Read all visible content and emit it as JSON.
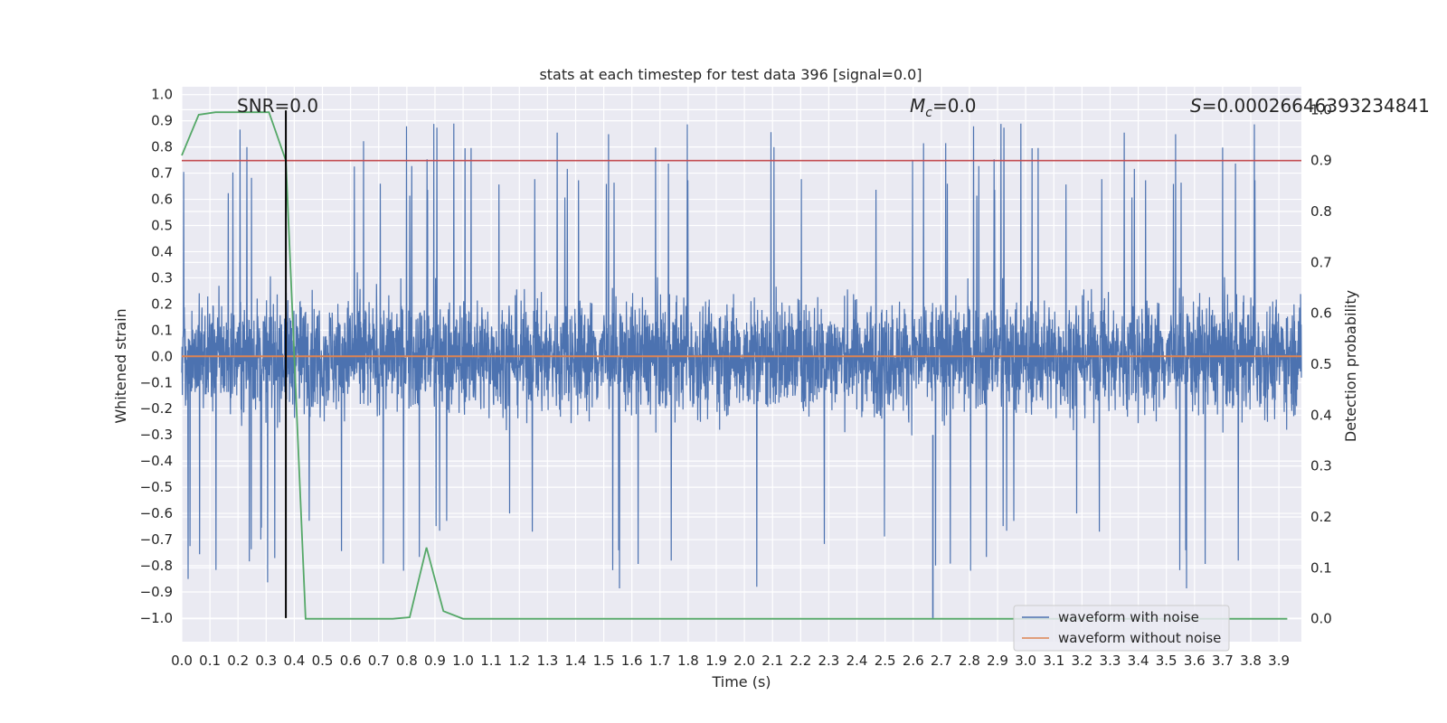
{
  "chart_data": {
    "type": "line",
    "title": "stats at each timestep for test data 396 [signal=0.0]",
    "xlabel": "Time (s)",
    "ylabel": "Whitened strain",
    "y2label": "Detection probability",
    "xlim": [
      0.0,
      3.98
    ],
    "ylim": [
      -1.09,
      1.03
    ],
    "y2lim": [
      -0.045,
      1.045
    ],
    "x_ticks": [
      "0.0",
      "0.1",
      "0.2",
      "0.3",
      "0.4",
      "0.5",
      "0.6",
      "0.7",
      "0.8",
      "0.9",
      "1.0",
      "1.1",
      "1.2",
      "1.3",
      "1.4",
      "1.5",
      "1.6",
      "1.7",
      "1.8",
      "1.9",
      "2.0",
      "2.1",
      "2.2",
      "2.3",
      "2.4",
      "2.5",
      "2.6",
      "2.7",
      "2.8",
      "2.9",
      "3.0",
      "3.1",
      "3.2",
      "3.3",
      "3.4",
      "3.5",
      "3.6",
      "3.7",
      "3.8",
      "3.9"
    ],
    "y_ticks": [
      "1.0",
      "0.9",
      "0.8",
      "0.7",
      "0.6",
      "0.5",
      "0.4",
      "0.3",
      "0.2",
      "0.1",
      "0.0",
      "−0.1",
      "−0.2",
      "−0.3",
      "−0.4",
      "−0.5",
      "−0.6",
      "−0.7",
      "−0.8",
      "−0.9",
      "−1.0"
    ],
    "y2_ticks": [
      "1.0",
      "0.9",
      "0.8",
      "0.7",
      "0.6",
      "0.5",
      "0.4",
      "0.3",
      "0.2",
      "0.1",
      "0.0"
    ],
    "annotations": {
      "snr": "SNR=0.0",
      "mc_base": "M",
      "mc_sub": "c",
      "mc_value": "=0.0",
      "s_symbol": "S",
      "s_value": "=0.00026646393234841",
      "mc_glyph_name": "M_c"
    },
    "series": [
      {
        "name": "waveform with noise",
        "color": "#4c72b0",
        "axis": "left",
        "description": "noisy whitened strain",
        "n_points": 4096,
        "range": [
          -1.0,
          0.94
        ]
      },
      {
        "name": "waveform without noise",
        "color": "#dd8452",
        "axis": "left",
        "values_x": [
          0.0,
          3.98
        ],
        "values_y": [
          0.0,
          0.0
        ]
      },
      {
        "name": "detection probability",
        "color": "#55a868",
        "axis": "right",
        "x": [
          0.0,
          0.06,
          0.12,
          0.19,
          0.25,
          0.31,
          0.37,
          0.44,
          0.5,
          0.56,
          0.62,
          0.69,
          0.75,
          0.81,
          0.87,
          0.93,
          1.0,
          1.06,
          1.2,
          1.5,
          2.0,
          2.5,
          3.0,
          3.5,
          3.93
        ],
        "y": [
          0.91,
          0.99,
          0.995,
          0.995,
          0.995,
          0.995,
          0.9,
          0.0,
          0.0,
          0.0,
          0.0,
          0.0,
          0.0,
          0.003,
          0.14,
          0.015,
          0.0,
          0.0,
          0.0,
          0.0,
          0.0,
          0.0,
          0.0,
          0.0,
          0.0
        ]
      }
    ],
    "threshold": {
      "value": 0.9,
      "axis": "right",
      "color": "#c44e52"
    },
    "marker_line": {
      "x": 0.37,
      "y_from": -1.0,
      "y_to": 0.94,
      "color": "#000000"
    },
    "legend": {
      "placement": "lower-right",
      "entries": [
        {
          "label": "waveform with noise",
          "color": "#4c72b0"
        },
        {
          "label": "waveform without noise",
          "color": "#dd8452"
        }
      ]
    },
    "style": {
      "background": "#eaeaf2",
      "grid": true,
      "grid_color": "#ffffff"
    }
  }
}
